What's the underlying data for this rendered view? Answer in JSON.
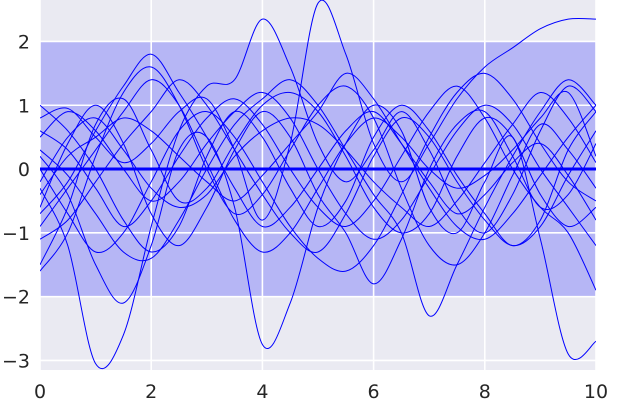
{
  "chart_data": {
    "type": "line",
    "title": "",
    "xlabel": "",
    "ylabel": "",
    "xlim": [
      0,
      10
    ],
    "ylim": [
      -3.15,
      2.65
    ],
    "x_ticks": [
      0,
      2,
      4,
      6,
      8,
      10
    ],
    "y_ticks": [
      -3,
      -2,
      -1,
      0,
      1,
      2
    ],
    "x_tick_labels": [
      "0",
      "2",
      "4",
      "6",
      "8",
      "10"
    ],
    "y_tick_labels": [
      "−3",
      "−2",
      "−1",
      "0",
      "1",
      "2"
    ],
    "grid": true,
    "background_color": "#eaeaf2",
    "band": {
      "lower": -2,
      "upper": 2,
      "color": "#0000ff",
      "opacity": 0.22
    },
    "mean": {
      "x": [
        0,
        10
      ],
      "y": [
        0,
        0
      ],
      "color": "#0000ff"
    },
    "series_color": "#0000ff",
    "series_x": [
      0,
      0.5,
      1,
      1.5,
      2,
      2.5,
      3,
      3.5,
      4,
      4.5,
      5,
      5.5,
      6,
      6.5,
      7,
      7.5,
      8,
      8.5,
      9,
      9.5,
      10
    ],
    "series": [
      {
        "y": [
          -0.3,
          -1.2,
          -3.05,
          -2.6,
          -0.9,
          0.6,
          1.3,
          1.4,
          2.35,
          1.6,
          0.4,
          -0.2,
          0.3,
          0.9,
          0.3,
          -0.6,
          -1.0,
          -0.4,
          0.6,
          1.3,
          0.9
        ]
      },
      {
        "y": [
          0.2,
          -0.4,
          -1.5,
          -2.1,
          -1.2,
          0.3,
          0.5,
          -0.6,
          -2.75,
          -2.1,
          -0.6,
          0.4,
          1.0,
          0.6,
          -0.6,
          -1.0,
          -0.2,
          0.5,
          -1.1,
          -2.9,
          -2.7
        ]
      },
      {
        "y": [
          0.8,
          0.95,
          0.5,
          0.1,
          0.4,
          0.9,
          1.1,
          0.3,
          -0.8,
          0.4,
          2.6,
          1.8,
          0.4,
          -0.2,
          0.4,
          1.1,
          1.6,
          1.9,
          2.2,
          2.35,
          2.35
        ]
      },
      {
        "y": [
          -1.5,
          -0.6,
          0.7,
          1.1,
          0.3,
          -0.5,
          -0.3,
          0.4,
          1.0,
          1.2,
          0.9,
          0.2,
          -0.6,
          -1.0,
          -0.7,
          0.2,
          0.8,
          0.5,
          -0.4,
          -0.9,
          -0.6
        ]
      },
      {
        "y": [
          -1.6,
          -1.0,
          0.2,
          1.2,
          1.6,
          1.0,
          0.0,
          -0.7,
          -0.4,
          0.3,
          1.0,
          1.3,
          0.8,
          -0.3,
          -1.2,
          -1.5,
          -1.0,
          -0.1,
          0.7,
          0.3,
          -0.3
        ]
      },
      {
        "y": [
          -0.6,
          0.4,
          1.0,
          0.4,
          -0.7,
          -1.2,
          -0.6,
          0.3,
          0.9,
          0.5,
          -0.4,
          -1.0,
          -1.8,
          -1.1,
          0.0,
          0.7,
          0.9,
          0.2,
          -0.6,
          -0.4,
          0.4
        ]
      },
      {
        "y": [
          1.0,
          0.6,
          0.0,
          -0.8,
          -1.3,
          -0.9,
          0.2,
          0.9,
          0.5,
          -0.3,
          -0.9,
          -0.5,
          0.5,
          1.0,
          0.6,
          -0.1,
          -0.7,
          -1.2,
          -0.8,
          0.3,
          0.9
        ]
      },
      {
        "y": [
          -0.2,
          0.5,
          0.8,
          0.3,
          -0.3,
          -0.6,
          -0.4,
          0.2,
          0.6,
          0.8,
          0.7,
          0.3,
          -0.2,
          -0.6,
          -0.9,
          -0.5,
          0.1,
          0.7,
          1.2,
          0.8,
          0.1
        ]
      },
      {
        "y": [
          0.5,
          0.9,
          0.6,
          0.0,
          -0.5,
          -0.2,
          0.4,
          0.9,
          1.2,
          0.8,
          0.0,
          -0.7,
          -1.1,
          -0.8,
          -0.1,
          0.6,
          1.0,
          0.7,
          0.0,
          -0.6,
          -1.2
        ]
      },
      {
        "y": [
          -0.9,
          -0.3,
          0.3,
          0.9,
          1.4,
          1.0,
          0.1,
          -0.8,
          -1.3,
          -1.0,
          -0.3,
          0.4,
          0.8,
          0.5,
          0.0,
          -0.3,
          -0.1,
          0.3,
          0.8,
          1.2,
          0.2
        ]
      },
      {
        "y": [
          0.0,
          -0.7,
          -1.3,
          -1.0,
          -0.2,
          0.6,
          0.9,
          0.5,
          -0.2,
          -0.9,
          -1.4,
          -1.6,
          -1.2,
          -0.4,
          0.5,
          1.2,
          1.5,
          1.1,
          0.4,
          -0.2,
          -0.5
        ]
      },
      {
        "y": [
          -0.4,
          0.2,
          0.5,
          0.8,
          0.6,
          0.2,
          -0.2,
          -0.5,
          -0.1,
          0.4,
          0.9,
          1.5,
          1.1,
          0.4,
          -0.3,
          -0.9,
          -1.1,
          -0.7,
          -0.1,
          0.5,
          1.0
        ]
      },
      {
        "y": [
          0.3,
          -0.1,
          -0.7,
          -1.3,
          -1.4,
          -0.8,
          0.0,
          0.7,
          1.1,
          1.4,
          1.0,
          0.3,
          -0.4,
          -1.0,
          -2.3,
          -1.5,
          -0.6,
          0.2,
          0.9,
          1.4,
          1.0
        ]
      },
      {
        "y": [
          -0.7,
          -0.2,
          0.6,
          1.3,
          1.8,
          1.2,
          0.5,
          -0.3,
          -0.9,
          -0.6,
          0.0,
          0.6,
          0.9,
          0.4,
          -0.2,
          -0.7,
          -0.4,
          0.1,
          0.4,
          -0.1,
          -0.8
        ]
      },
      {
        "y": [
          0.6,
          0.3,
          -0.3,
          -0.9,
          -0.5,
          0.2,
          0.8,
          1.1,
          0.7,
          0.0,
          -0.6,
          -0.9,
          -0.5,
          0.2,
          0.9,
          1.3,
          0.8,
          0.0,
          -0.6,
          -1.0,
          -1.9
        ]
      },
      {
        "y": [
          -1.1,
          -0.8,
          -0.2,
          0.4,
          0.9,
          1.4,
          1.0,
          0.3,
          -0.4,
          -1.0,
          -1.3,
          -0.7,
          0.2,
          0.8,
          0.5,
          -0.2,
          -0.8,
          -1.2,
          -0.9,
          -0.1,
          0.6
        ]
      }
    ]
  }
}
